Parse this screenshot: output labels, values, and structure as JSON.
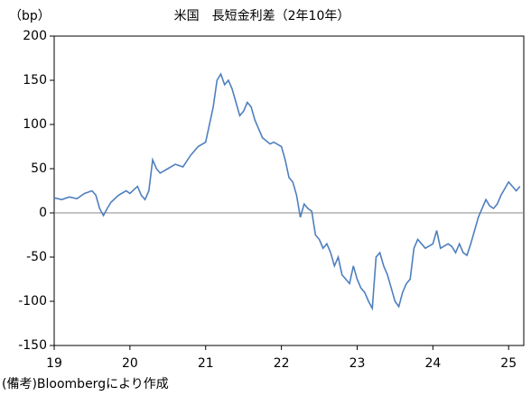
{
  "chart_data": {
    "type": "line",
    "title": "米国　長短金利差（2年10年）",
    "y_label": "（bp）",
    "note": "(備考)Bloombergにより作成",
    "x": [
      19.0,
      19.1,
      19.2,
      19.3,
      19.4,
      19.5,
      19.55,
      19.6,
      19.65,
      19.7,
      19.75,
      19.85,
      19.95,
      20.0,
      20.1,
      20.15,
      20.2,
      20.25,
      20.3,
      20.35,
      20.4,
      20.5,
      20.6,
      20.7,
      20.8,
      20.9,
      21.0,
      21.05,
      21.1,
      21.15,
      21.2,
      21.25,
      21.3,
      21.35,
      21.4,
      21.45,
      21.5,
      21.55,
      21.6,
      21.65,
      21.7,
      21.75,
      21.85,
      21.9,
      22.0,
      22.05,
      22.1,
      22.15,
      22.2,
      22.25,
      22.3,
      22.35,
      22.4,
      22.45,
      22.5,
      22.55,
      22.6,
      22.65,
      22.7,
      22.75,
      22.8,
      22.85,
      22.9,
      22.95,
      23.0,
      23.05,
      23.1,
      23.15,
      23.2,
      23.25,
      23.3,
      23.35,
      23.4,
      23.45,
      23.5,
      23.55,
      23.6,
      23.65,
      23.7,
      23.75,
      23.8,
      23.85,
      23.9,
      24.0,
      24.05,
      24.1,
      24.2,
      24.25,
      24.3,
      24.35,
      24.4,
      24.45,
      24.5,
      24.55,
      24.6,
      24.65,
      24.7,
      24.75,
      24.8,
      24.85,
      24.9,
      25.0,
      25.05,
      25.1,
      25.15
    ],
    "series": [
      {
        "name": "長短金利差",
        "color": "#4f7fbf",
        "values": [
          17,
          15,
          18,
          16,
          22,
          25,
          20,
          5,
          -3,
          5,
          12,
          20,
          25,
          22,
          30,
          20,
          15,
          25,
          60,
          50,
          45,
          50,
          55,
          52,
          65,
          75,
          80,
          100,
          120,
          150,
          157,
          145,
          150,
          140,
          125,
          110,
          115,
          125,
          120,
          105,
          95,
          85,
          78,
          80,
          75,
          60,
          40,
          35,
          20,
          -5,
          10,
          5,
          2,
          -25,
          -30,
          -40,
          -35,
          -45,
          -60,
          -50,
          -70,
          -75,
          -80,
          -60,
          -75,
          -85,
          -90,
          -100,
          -108,
          -50,
          -45,
          -60,
          -70,
          -85,
          -100,
          -106,
          -90,
          -80,
          -75,
          -40,
          -30,
          -35,
          -40,
          -35,
          -20,
          -40,
          -35,
          -38,
          -45,
          -35,
          -45,
          -48,
          -35,
          -20,
          -5,
          5,
          15,
          8,
          5,
          10,
          20,
          35,
          30,
          25,
          30
        ]
      }
    ],
    "xlim": [
      19,
      25.2
    ],
    "xticks": [
      19,
      20,
      21,
      22,
      23,
      24,
      25
    ],
    "ylim": [
      -150,
      200
    ],
    "yticks": [
      -150,
      -100,
      -50,
      0,
      50,
      100,
      150,
      200
    ]
  }
}
